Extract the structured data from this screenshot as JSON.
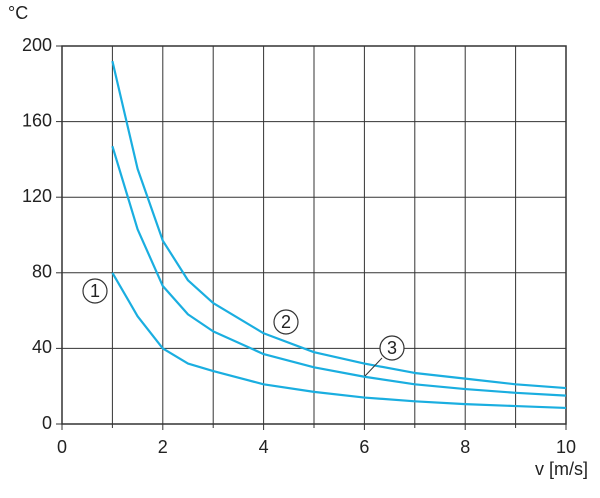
{
  "chart_data": {
    "type": "line",
    "y_label": "°C",
    "x_label": "v [m/s]",
    "x": [
      1,
      1.5,
      2,
      2.5,
      3,
      4,
      5,
      6,
      7,
      8,
      9,
      10
    ],
    "series": [
      {
        "name": "1",
        "color": "#1aaee0",
        "values": [
          80,
          57,
          40,
          32,
          28,
          21,
          17,
          14,
          12,
          10.5,
          9.5,
          8.5
        ]
      },
      {
        "name": "2",
        "color": "#1aaee0",
        "values": [
          192,
          135,
          97,
          76,
          64,
          48,
          38,
          32,
          27,
          24,
          21,
          19
        ]
      },
      {
        "name": "3",
        "color": "#1aaee0",
        "values": [
          147,
          103,
          73,
          58,
          49,
          37,
          30,
          25,
          21,
          18.5,
          16.5,
          15
        ]
      }
    ],
    "xlim": [
      0,
      10
    ],
    "xticks": [
      0,
      2,
      4,
      6,
      8,
      10
    ],
    "xminor": [
      1,
      3,
      5,
      7,
      9
    ],
    "ylim": [
      0,
      200
    ],
    "yticks": [
      0,
      40,
      80,
      120,
      160,
      200
    ],
    "grid": true
  }
}
